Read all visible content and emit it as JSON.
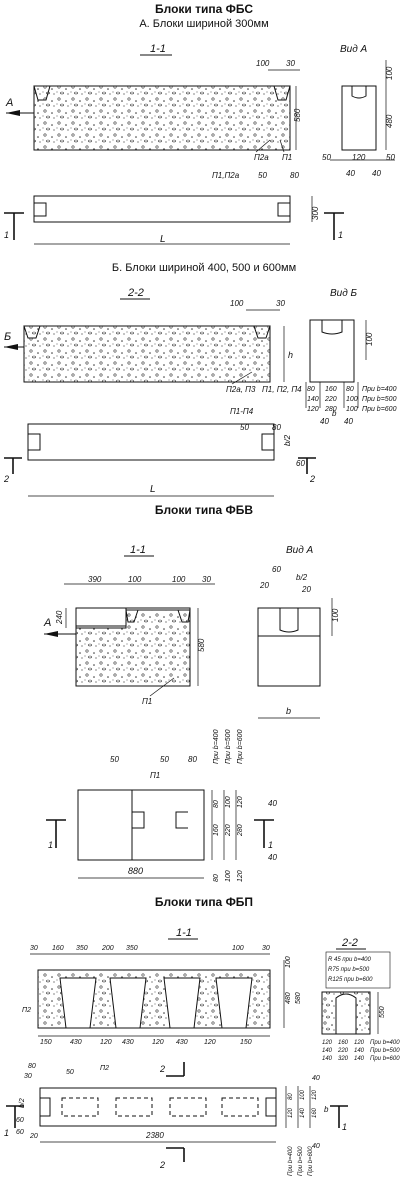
{
  "titles": {
    "fbs": "Блоки типа ФБС",
    "fbs_a": "А. Блоки шириной 300мм",
    "fbs_b": "Б. Блоки шириной 400, 500 и 600мм",
    "fbv": "Блоки типа ФБВ",
    "fbp": "Блоки типа ФБП"
  },
  "fbs_a": {
    "section": "1-1",
    "view": "Вид А",
    "arrow": "А",
    "d100": "100",
    "d30": "30",
    "d580": "580",
    "p2a": "П2а",
    "p1": "П1",
    "p1p2a": "П1,П2а",
    "d50": "50",
    "d80": "80",
    "d300": "300",
    "L": "L",
    "cut": "1",
    "v100": "100",
    "v480": "480",
    "v50a": "50",
    "v120": "120",
    "v50b": "50",
    "v40a": "40",
    "v40b": "40"
  },
  "fbs_b": {
    "section": "2-2",
    "view": "Вид Б",
    "arrow": "Б",
    "d100": "100",
    "d30": "30",
    "h": "h",
    "p2ap3": "П2а, П3",
    "p1p2p4": "П1, П2, П4",
    "p1p4": "П1-П4",
    "d50": "50",
    "d80": "80",
    "b2": "b/2",
    "d60": "60",
    "L": "L",
    "cut": "2",
    "v100": "100",
    "rows": [
      {
        "a": "80",
        "b": "160",
        "c": "80",
        "note": "При b=400"
      },
      {
        "a": "140",
        "b": "220",
        "c": "100",
        "note": "При b=500"
      },
      {
        "a": "120",
        "b": "280",
        "c": "100",
        "note": "При b=600"
      }
    ],
    "v40a": "40",
    "v40b": "40",
    "vb": "b"
  },
  "fbv": {
    "section": "1-1",
    "view": "Вид А",
    "arrow": "А",
    "d390": "390",
    "d100a": "100",
    "d100b": "100",
    "d30": "30",
    "d240": "240",
    "d580": "580",
    "p1": "П1",
    "v60": "60",
    "v20a": "20",
    "vb2": "b/2",
    "v20b": "20",
    "v100": "100",
    "vb": "b",
    "d50a": "50",
    "d50b": "50",
    "d80": "80",
    "pp1": "П1",
    "b400": "При b=400",
    "b500": "При b=500",
    "b600": "При b=600",
    "c1": [
      "80",
      "160"
    ],
    "c2": [
      "100",
      "220"
    ],
    "c3": [
      "120",
      "280"
    ],
    "d40a": "40",
    "d40b": "40",
    "d880": "880",
    "cut": "1",
    "bot": [
      "80",
      "100",
      "120"
    ]
  },
  "fbp": {
    "section": "1-1",
    "section2": "2-2",
    "top": [
      "30",
      "160",
      "350",
      "200",
      "350",
      "100",
      "30"
    ],
    "d100": "100",
    "d480": "480",
    "d580": "580",
    "p2": "П2",
    "bottom": [
      "150",
      "430",
      "120",
      "430",
      "120",
      "430",
      "120",
      "150"
    ],
    "r45": "R 45 при b=400",
    "r75": "R75 при b=500",
    "r125": "R125 при b=600",
    "s550": "550",
    "srows": [
      {
        "a": "120",
        "b": "160",
        "c": "120",
        "note": "При b=400"
      },
      {
        "a": "140",
        "b": "220",
        "c": "140",
        "note": "При b=500"
      },
      {
        "a": "140",
        "b": "320",
        "c": "140",
        "note": "При b=600"
      }
    ],
    "d80": "80",
    "d30": "30",
    "d50": "50",
    "pp2": "П2",
    "b2": "b/2",
    "d60a": "60",
    "d60b": "60",
    "d20": "20",
    "cut2": "2",
    "cut1": "1",
    "d2380": "2380",
    "b400": "При b=400",
    "b500": "При b=500",
    "b600": "При b=600",
    "r40a": "40",
    "r40b": "40",
    "rv": [
      "80",
      "120",
      "100",
      "140",
      "120",
      "160"
    ],
    "rb": "b"
  }
}
